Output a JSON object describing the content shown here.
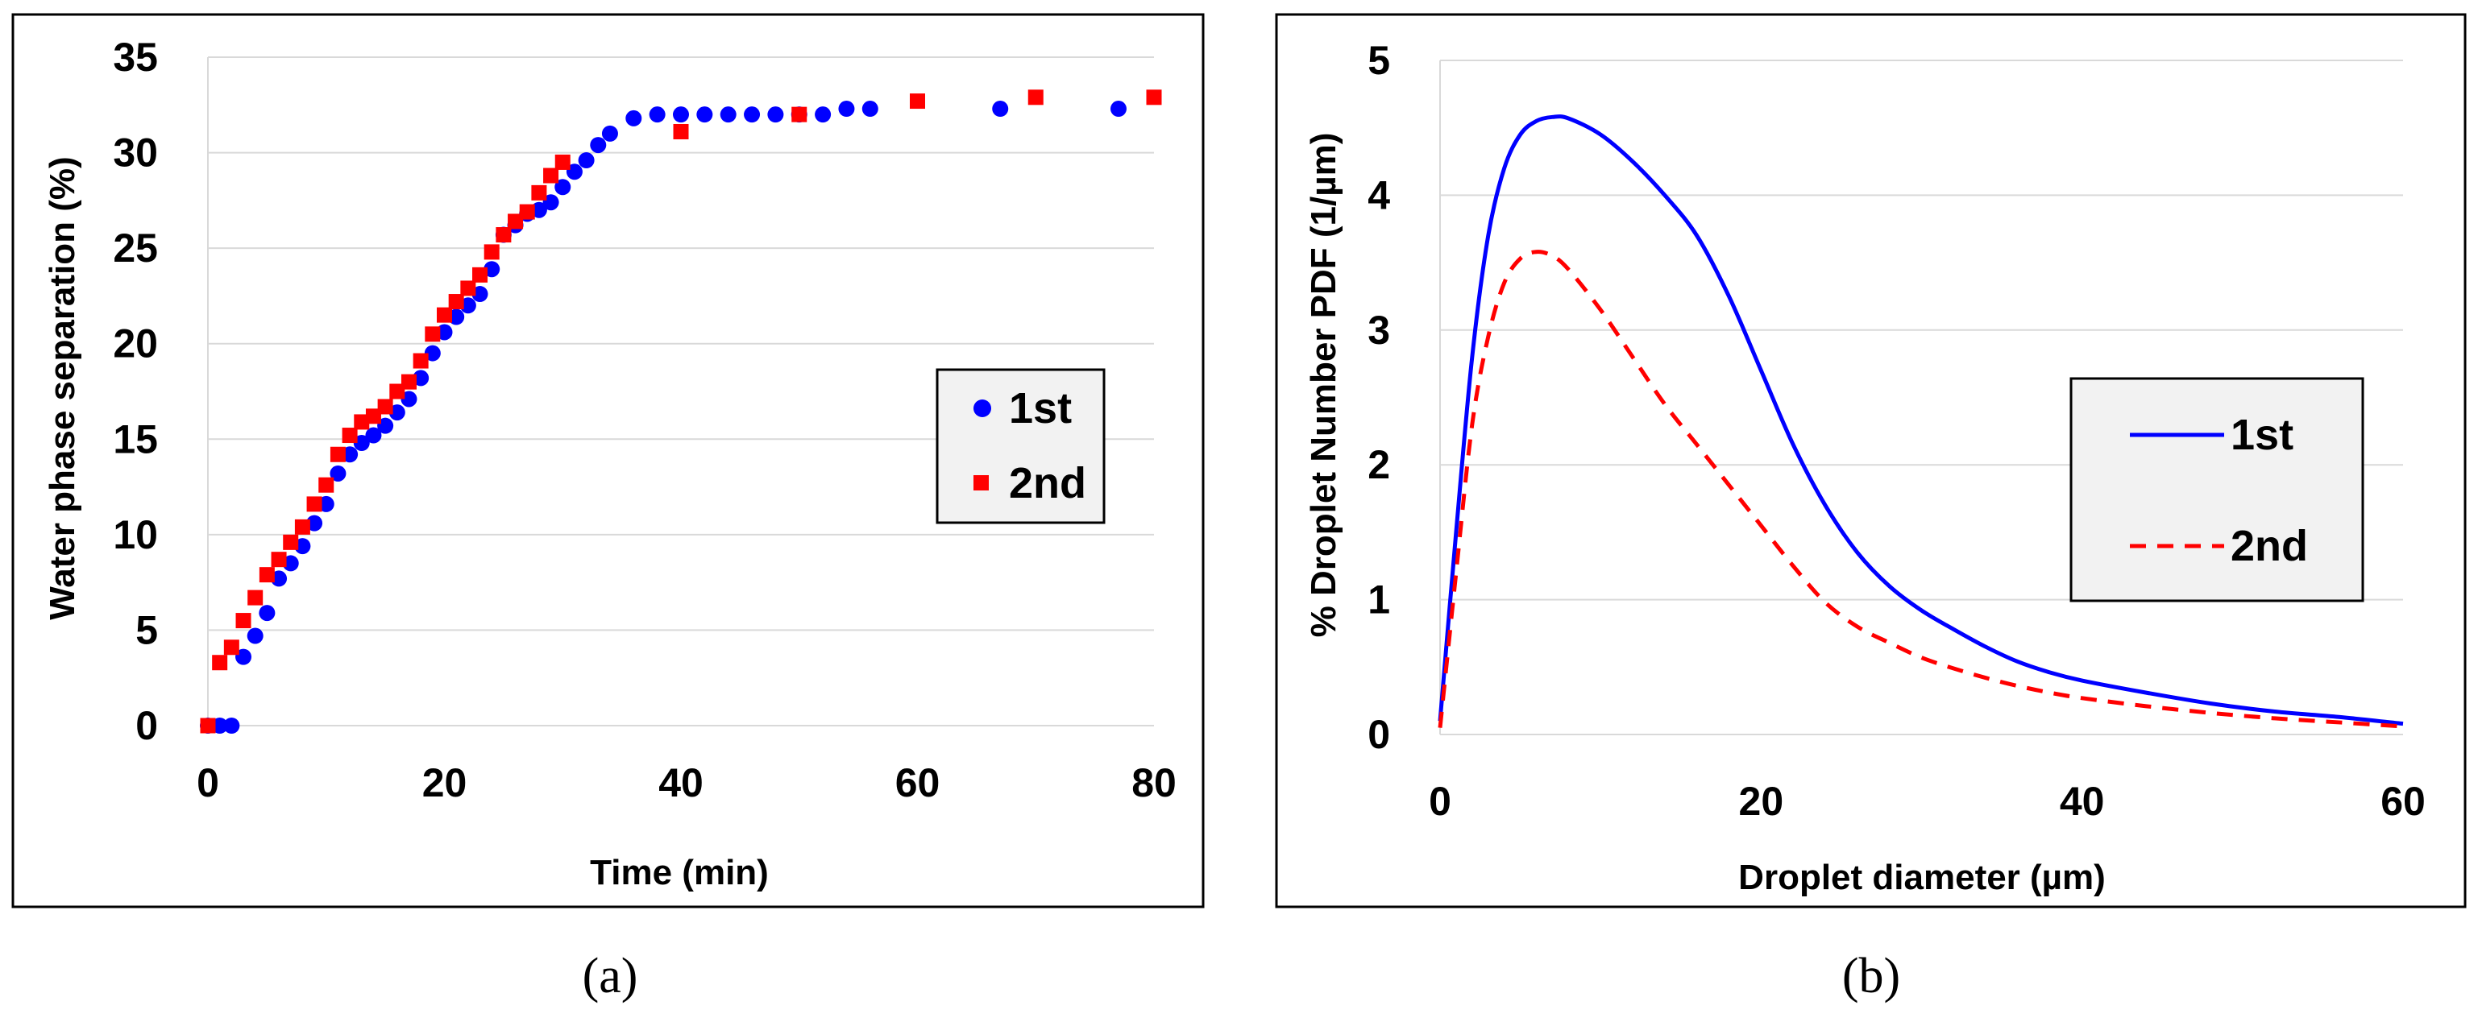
{
  "chart_data": [
    {
      "type": "scatter",
      "panel_label": "(a)",
      "xlabel": "Time (min)",
      "ylabel": "Water phase separation (%)",
      "xlim": [
        0,
        80
      ],
      "ylim": [
        0,
        35
      ],
      "xticks": [
        0,
        20,
        40,
        60,
        80
      ],
      "yticks": [
        0,
        5,
        10,
        15,
        20,
        25,
        30,
        35
      ],
      "grid": "horizontal",
      "legend_position": "right",
      "series": [
        {
          "name": "1st",
          "marker": "circle",
          "color": "#0000ff",
          "points": [
            [
              0,
              0
            ],
            [
              1,
              0
            ],
            [
              2,
              0
            ],
            [
              3,
              3.6
            ],
            [
              4,
              4.7
            ],
            [
              5,
              5.9
            ],
            [
              6,
              7.7
            ],
            [
              7,
              8.5
            ],
            [
              8,
              9.4
            ],
            [
              9,
              10.6
            ],
            [
              10,
              11.6
            ],
            [
              11,
              13.2
            ],
            [
              12,
              14.2
            ],
            [
              13,
              14.8
            ],
            [
              14,
              15.2
            ],
            [
              15,
              15.7
            ],
            [
              16,
              16.4
            ],
            [
              17,
              17.1
            ],
            [
              18,
              18.2
            ],
            [
              19,
              19.5
            ],
            [
              20,
              20.6
            ],
            [
              21,
              21.4
            ],
            [
              22,
              22.0
            ],
            [
              23,
              22.6
            ],
            [
              24,
              23.9
            ],
            [
              25,
              25.7
            ],
            [
              26,
              26.2
            ],
            [
              27,
              26.8
            ],
            [
              28,
              27.0
            ],
            [
              29,
              27.4
            ],
            [
              30,
              28.2
            ],
            [
              31,
              29.0
            ],
            [
              32,
              29.6
            ],
            [
              33,
              30.4
            ],
            [
              34,
              31.0
            ],
            [
              36,
              31.8
            ],
            [
              38,
              32.0
            ],
            [
              40,
              32.0
            ],
            [
              42,
              32.0
            ],
            [
              44,
              32.0
            ],
            [
              46,
              32.0
            ],
            [
              48,
              32.0
            ],
            [
              50,
              32.0
            ],
            [
              52,
              32.0
            ],
            [
              54,
              32.3
            ],
            [
              56,
              32.3
            ],
            [
              67,
              32.3
            ],
            [
              77,
              32.3
            ]
          ]
        },
        {
          "name": "2nd",
          "marker": "square",
          "color": "#ff0000",
          "points": [
            [
              0,
              0
            ],
            [
              1,
              3.3
            ],
            [
              2,
              4.1
            ],
            [
              3,
              5.5
            ],
            [
              4,
              6.7
            ],
            [
              5,
              7.9
            ],
            [
              6,
              8.7
            ],
            [
              7,
              9.6
            ],
            [
              8,
              10.4
            ],
            [
              9,
              11.6
            ],
            [
              10,
              12.6
            ],
            [
              11,
              14.2
            ],
            [
              12,
              15.2
            ],
            [
              13,
              15.9
            ],
            [
              14,
              16.2
            ],
            [
              15,
              16.7
            ],
            [
              16,
              17.5
            ],
            [
              17,
              18.0
            ],
            [
              18,
              19.1
            ],
            [
              19,
              20.5
            ],
            [
              20,
              21.5
            ],
            [
              21,
              22.2
            ],
            [
              22,
              22.9
            ],
            [
              23,
              23.6
            ],
            [
              24,
              24.8
            ],
            [
              25,
              25.7
            ],
            [
              26,
              26.4
            ],
            [
              27,
              26.9
            ],
            [
              28,
              27.9
            ],
            [
              29,
              28.8
            ],
            [
              30,
              29.5
            ],
            [
              40,
              31.1
            ],
            [
              50,
              32.0
            ],
            [
              60,
              32.7
            ],
            [
              70,
              32.9
            ],
            [
              80,
              32.9
            ]
          ]
        }
      ]
    },
    {
      "type": "line",
      "panel_label": "(b)",
      "xlabel": "Droplet diameter (µm)",
      "ylabel": "% Droplet Number PDF (1/µm)",
      "xlim": [
        0,
        60
      ],
      "ylim": [
        0,
        5
      ],
      "xticks": [
        0,
        20,
        40,
        60
      ],
      "yticks": [
        0,
        1,
        2,
        3,
        4,
        5
      ],
      "grid": "horizontal",
      "legend_position": "right",
      "series": [
        {
          "name": "1st",
          "style": "solid",
          "color": "#0000ff",
          "points": [
            [
              0,
              0.1
            ],
            [
              1,
              1.5
            ],
            [
              2,
              2.8
            ],
            [
              3,
              3.7
            ],
            [
              4,
              4.2
            ],
            [
              5,
              4.45
            ],
            [
              6,
              4.55
            ],
            [
              7,
              4.58
            ],
            [
              8,
              4.57
            ],
            [
              10,
              4.45
            ],
            [
              12,
              4.25
            ],
            [
              14,
              4.0
            ],
            [
              16,
              3.7
            ],
            [
              18,
              3.25
            ],
            [
              20,
              2.7
            ],
            [
              22,
              2.15
            ],
            [
              24,
              1.7
            ],
            [
              26,
              1.35
            ],
            [
              28,
              1.1
            ],
            [
              30,
              0.92
            ],
            [
              32,
              0.78
            ],
            [
              34,
              0.65
            ],
            [
              36,
              0.54
            ],
            [
              38,
              0.46
            ],
            [
              40,
              0.4
            ],
            [
              44,
              0.31
            ],
            [
              48,
              0.23
            ],
            [
              52,
              0.17
            ],
            [
              56,
              0.13
            ],
            [
              60,
              0.08
            ]
          ]
        },
        {
          "name": "2nd",
          "style": "dashed",
          "color": "#ff0000",
          "points": [
            [
              0,
              0.05
            ],
            [
              1,
              1.2
            ],
            [
              2,
              2.3
            ],
            [
              3,
              2.95
            ],
            [
              4,
              3.35
            ],
            [
              5,
              3.53
            ],
            [
              6,
              3.58
            ],
            [
              7,
              3.55
            ],
            [
              8,
              3.45
            ],
            [
              10,
              3.15
            ],
            [
              12,
              2.8
            ],
            [
              14,
              2.45
            ],
            [
              16,
              2.15
            ],
            [
              18,
              1.85
            ],
            [
              20,
              1.55
            ],
            [
              22,
              1.25
            ],
            [
              24,
              0.98
            ],
            [
              26,
              0.8
            ],
            [
              28,
              0.68
            ],
            [
              30,
              0.57
            ],
            [
              32,
              0.49
            ],
            [
              34,
              0.42
            ],
            [
              36,
              0.36
            ],
            [
              38,
              0.31
            ],
            [
              40,
              0.27
            ],
            [
              44,
              0.21
            ],
            [
              48,
              0.16
            ],
            [
              52,
              0.12
            ],
            [
              56,
              0.09
            ],
            [
              60,
              0.06
            ]
          ]
        }
      ]
    }
  ]
}
